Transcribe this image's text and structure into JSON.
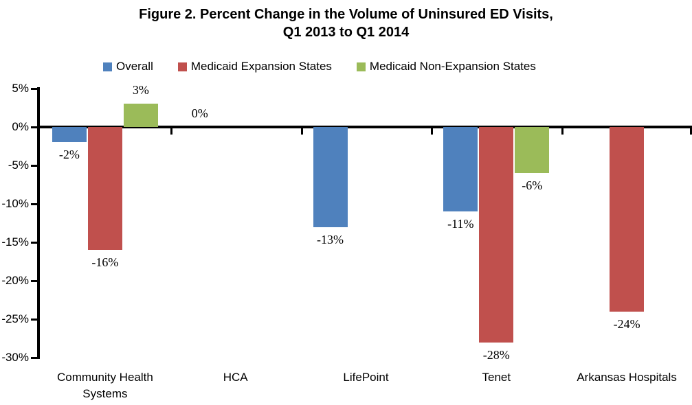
{
  "title": {
    "line1": "Figure 2. Percent Change in the Volume of Uninsured ED Visits,",
    "line2": "Q1 2013 to Q1 2014"
  },
  "colors": {
    "overall": "#4F81BD",
    "expansion": "#C0504D",
    "non_expansion": "#9BBB59",
    "axis": "#000000"
  },
  "chart_data": {
    "type": "bar",
    "title": "Figure 2. Percent Change in the Volume of Uninsured ED Visits, Q1 2013 to Q1 2014",
    "categories": [
      "Community Health Systems",
      "HCA",
      "LifePoint",
      "Tenet",
      "Arkansas Hospitals"
    ],
    "series": [
      {
        "name": "Overall",
        "color": "#4F81BD",
        "values": [
          -2,
          0,
          -13,
          -11,
          null
        ]
      },
      {
        "name": "Medicaid Expansion States",
        "color": "#C0504D",
        "values": [
          -16,
          null,
          null,
          -28,
          -24
        ]
      },
      {
        "name": "Medicaid Non-Expansion States",
        "color": "#9BBB59",
        "values": [
          3,
          null,
          null,
          -6,
          null
        ]
      }
    ],
    "data_labels": [
      {
        "text": "-2%"
      },
      {
        "text": "0%"
      },
      {
        "text": "-13%"
      },
      {
        "text": "-11%"
      },
      {
        "text": "-16%"
      },
      {
        "text": "-28%"
      },
      {
        "text": "-24%"
      },
      {
        "text": "3%"
      },
      {
        "text": "-6%"
      }
    ],
    "ylabel": "",
    "xlabel": "",
    "ylim": [
      -30,
      5
    ],
    "ytick_step": 5,
    "ytick_labels": [
      "5%",
      "0%",
      "-5%",
      "-10%",
      "-15%",
      "-20%",
      "-25%",
      "-30%"
    ],
    "value_suffix": "%",
    "legend_position": "top",
    "grid": false
  }
}
